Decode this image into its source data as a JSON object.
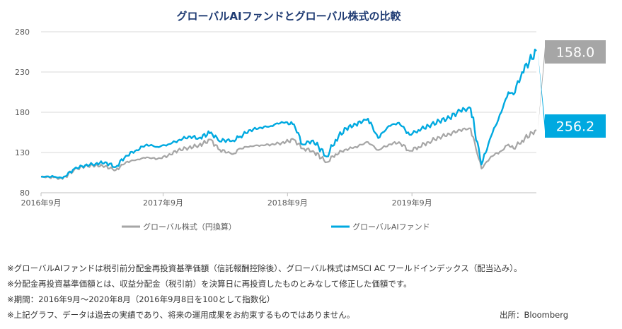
{
  "chart_data": {
    "type": "line",
    "title": "グローバルAIファンドとグローバル株式の比較",
    "ylim": [
      80,
      280
    ],
    "yticks": [
      80,
      130,
      180,
      230,
      280
    ],
    "xlim": [
      "2016-09-08",
      "2020-08-31"
    ],
    "xtick_labels": [
      "2016年9月",
      "2017年9月",
      "2018年9月",
      "2019年9月"
    ],
    "xtick_dates": [
      "2016-09-01",
      "2017-09-01",
      "2018-09-01",
      "2019-09-01"
    ],
    "grid": "horizontal",
    "legend_position": "bottom",
    "series": [
      {
        "name": "グローバル株式（円換算）",
        "color": "#a6a6a6",
        "end_label": "158.0",
        "points": [
          [
            "2016-09-08",
            100
          ],
          [
            "2016-10-15",
            99
          ],
          [
            "2016-11-10",
            97
          ],
          [
            "2016-12-15",
            109
          ],
          [
            "2017-01-15",
            113
          ],
          [
            "2017-02-15",
            114
          ],
          [
            "2017-03-15",
            113
          ],
          [
            "2017-04-15",
            108
          ],
          [
            "2017-05-15",
            118
          ],
          [
            "2017-06-15",
            121
          ],
          [
            "2017-07-15",
            124
          ],
          [
            "2017-08-15",
            122
          ],
          [
            "2017-09-15",
            126
          ],
          [
            "2017-10-15",
            133
          ],
          [
            "2017-11-15",
            136
          ],
          [
            "2017-12-15",
            139
          ],
          [
            "2018-01-20",
            146
          ],
          [
            "2018-02-10",
            134
          ],
          [
            "2018-03-25",
            128
          ],
          [
            "2018-04-15",
            135
          ],
          [
            "2018-05-15",
            138
          ],
          [
            "2018-06-15",
            139
          ],
          [
            "2018-07-15",
            140
          ],
          [
            "2018-08-15",
            142
          ],
          [
            "2018-09-20",
            146
          ],
          [
            "2018-10-15",
            135
          ],
          [
            "2018-11-15",
            132
          ],
          [
            "2018-12-25",
            118
          ],
          [
            "2019-01-20",
            128
          ],
          [
            "2019-02-20",
            134
          ],
          [
            "2019-03-20",
            137
          ],
          [
            "2019-04-25",
            143
          ],
          [
            "2019-05-25",
            133
          ],
          [
            "2019-06-25",
            140
          ],
          [
            "2019-07-25",
            143
          ],
          [
            "2019-08-25",
            132
          ],
          [
            "2019-09-20",
            137
          ],
          [
            "2019-10-20",
            143
          ],
          [
            "2019-11-20",
            149
          ],
          [
            "2019-12-20",
            153
          ],
          [
            "2020-01-20",
            158
          ],
          [
            "2020-02-20",
            160
          ],
          [
            "2020-03-23",
            110
          ],
          [
            "2020-04-20",
            125
          ],
          [
            "2020-05-20",
            132
          ],
          [
            "2020-06-10",
            140
          ],
          [
            "2020-06-25",
            135
          ],
          [
            "2020-07-20",
            145
          ],
          [
            "2020-08-31",
            158
          ]
        ]
      },
      {
        "name": "グローバルAIファンド",
        "color": "#00a9e0",
        "end_label": "256.2",
        "points": [
          [
            "2016-09-08",
            100
          ],
          [
            "2016-10-15",
            100
          ],
          [
            "2016-11-10",
            98
          ],
          [
            "2016-12-15",
            110
          ],
          [
            "2017-01-15",
            114
          ],
          [
            "2017-02-15",
            116
          ],
          [
            "2017-03-15",
            118
          ],
          [
            "2017-04-15",
            112
          ],
          [
            "2017-05-15",
            126
          ],
          [
            "2017-06-15",
            133
          ],
          [
            "2017-07-15",
            140
          ],
          [
            "2017-08-15",
            137
          ],
          [
            "2017-09-15",
            140
          ],
          [
            "2017-10-15",
            145
          ],
          [
            "2017-11-15",
            150
          ],
          [
            "2017-12-15",
            148
          ],
          [
            "2018-01-20",
            155
          ],
          [
            "2018-02-10",
            145
          ],
          [
            "2018-03-25",
            145
          ],
          [
            "2018-04-15",
            150
          ],
          [
            "2018-05-15",
            158
          ],
          [
            "2018-06-15",
            161
          ],
          [
            "2018-07-15",
            163
          ],
          [
            "2018-08-15",
            168
          ],
          [
            "2018-09-20",
            165
          ],
          [
            "2018-10-15",
            140
          ],
          [
            "2018-11-15",
            145
          ],
          [
            "2018-12-25",
            125
          ],
          [
            "2019-01-20",
            146
          ],
          [
            "2019-02-20",
            160
          ],
          [
            "2019-03-20",
            165
          ],
          [
            "2019-04-25",
            172
          ],
          [
            "2019-05-25",
            148
          ],
          [
            "2019-06-25",
            163
          ],
          [
            "2019-07-25",
            167
          ],
          [
            "2019-08-25",
            152
          ],
          [
            "2019-09-20",
            158
          ],
          [
            "2019-10-20",
            163
          ],
          [
            "2019-11-20",
            169
          ],
          [
            "2019-12-20",
            173
          ],
          [
            "2020-01-20",
            182
          ],
          [
            "2020-02-20",
            185
          ],
          [
            "2020-03-23",
            115
          ],
          [
            "2020-04-20",
            150
          ],
          [
            "2020-05-20",
            180
          ],
          [
            "2020-06-10",
            205
          ],
          [
            "2020-06-25",
            202
          ],
          [
            "2020-07-20",
            230
          ],
          [
            "2020-08-31",
            256.2
          ]
        ]
      }
    ]
  },
  "notes": [
    "※グローバルAIファンドは税引前分配金再投資基準価額（信託報酬控除後）、グローバル株式はMSCI AC ワールドインデックス（配当込み）。",
    "※分配金再投資基準価額とは、収益分配金（税引前）を決算日に再投資したものとみなして修正した価額です。",
    "※期間：2016年9月～2020年8月（2016年9月8日を100として指数化）",
    "※上記グラフ、データは過去の実績であり、将来の運用成果をお約束するものではありません。"
  ],
  "source": "出所：Bloomberg"
}
